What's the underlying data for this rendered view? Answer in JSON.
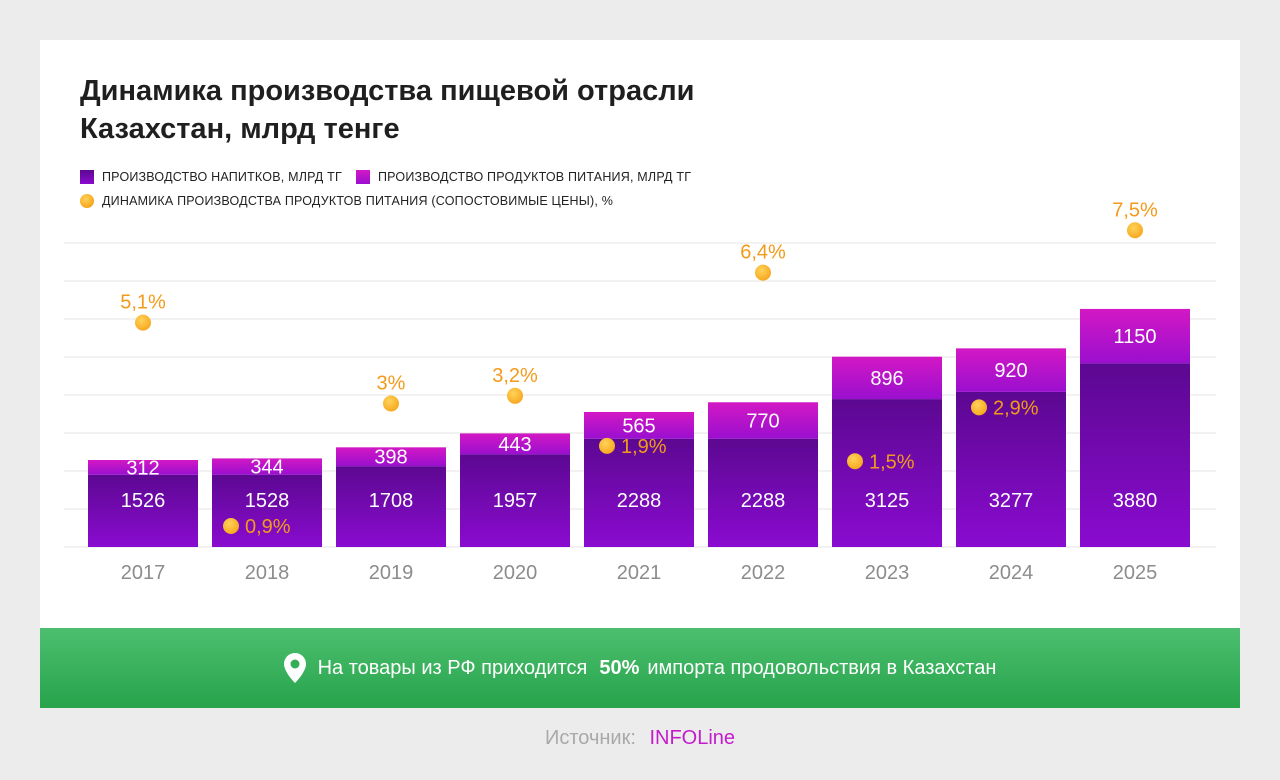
{
  "title": "Динамика производства пищевой отрасли Казахстан, млрд тенге",
  "legend": {
    "beverages": "ПРОИЗВОДСТВО НАПИТКОВ, МЛРД ТГ",
    "food": "ПРОИЗВОДСТВО ПРОДУКТОВ ПИТАНИЯ, МЛРД ТГ",
    "dynamics": "ДИНАМИКА ПРОИЗВОДСТВА ПРОДУКТОВ ПИТАНИЯ (СОПОСТОВИМЫЕ ЦЕНЫ), %"
  },
  "colors": {
    "beverages_top": "#5c0891",
    "beverages_bottom": "#8a0bd0",
    "food_top": "#d318c4",
    "food_bottom": "#9a0fcf",
    "dot": "#f7a51c",
    "dot_label": "#f39a1a",
    "grid": "#e4e4e4",
    "axis_label": "#8c8c8c",
    "banner": "#34ad57",
    "source_value": "#c41ccc"
  },
  "chart_data": {
    "type": "bar",
    "stacked": true,
    "title": "Динамика производства пищевой отрасли Казахстан, млрд тенге",
    "categories": [
      "2017",
      "2018",
      "2019",
      "2020",
      "2021",
      "2022",
      "2023",
      "2024",
      "2025"
    ],
    "series": [
      {
        "name": "ПРОИЗВОДСТВО НАПИТКОВ, МЛРД ТГ",
        "values": [
          1526,
          1528,
          1708,
          1957,
          2288,
          2288,
          3125,
          3277,
          3880
        ]
      },
      {
        "name": "ПРОИЗВОДСТВО ПРОДУКТОВ ПИТАНИЯ, МЛРД ТГ",
        "values": [
          312,
          344,
          398,
          443,
          565,
          770,
          896,
          920,
          1150
        ]
      }
    ],
    "dynamics": {
      "name": "ДИНАМИКА ПРОИЗВОДСТВА ПРОДУКТОВ ПИТАНИЯ (СОПОСТОВИМЫЕ ЦЕНЫ), %",
      "values": [
        5.1,
        0.9,
        3,
        3.2,
        1.9,
        6.4,
        1.5,
        2.9,
        7.5
      ],
      "labels": [
        "5,1%",
        "0,9%",
        "3%",
        "3,2%",
        "1,9%",
        "6,4%",
        "1,5%",
        "2,9%",
        "7,5%"
      ]
    },
    "xlabel": "",
    "ylabel": "",
    "grid": true,
    "legend_position": "top-left"
  },
  "banner": {
    "text_before": "На товары из РФ приходится",
    "highlight": "50%",
    "text_after": "импорта продовольствия в Казахстан",
    "icon": "location-pin-icon"
  },
  "source": {
    "label": "Источник:",
    "value": "INFOLine"
  }
}
